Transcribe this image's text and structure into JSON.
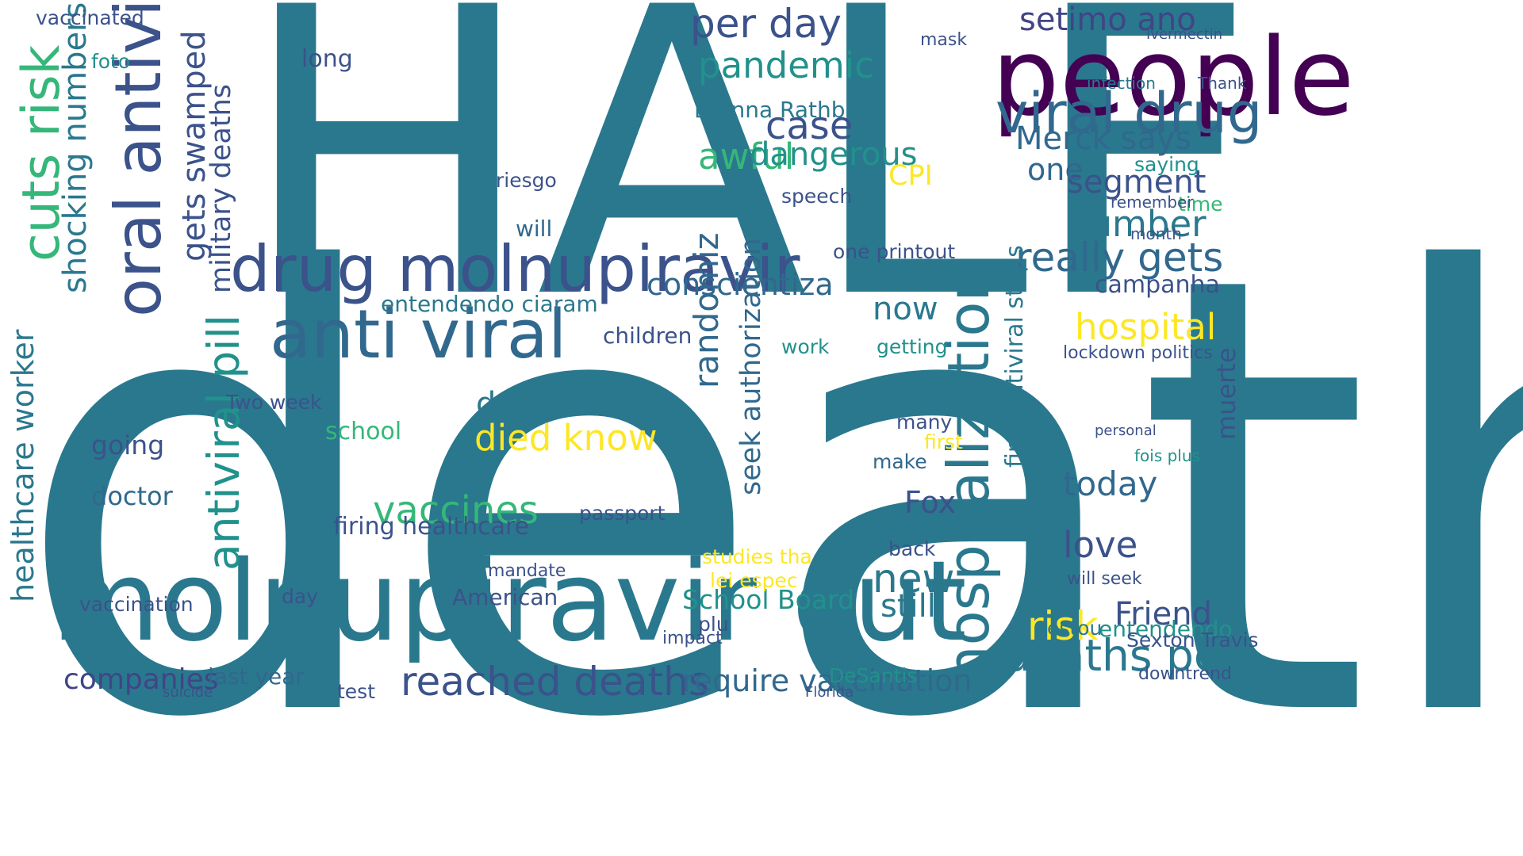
{
  "words": [
    {
      "text": "HALF",
      "color": "#2a788e",
      "vertical": false
    },
    {
      "text": "death",
      "color": "#2a788e",
      "vertical": false
    },
    {
      "text": "people",
      "color": "#440154",
      "vertical": false
    },
    {
      "text": "molnupiravir cut",
      "color": "#2a788e",
      "vertical": false
    },
    {
      "text": "drug molnupiravir",
      "color": "#3b528b",
      "vertical": false
    },
    {
      "text": "anti viral",
      "color": "#31688e",
      "vertical": false
    },
    {
      "text": "oral antivi",
      "color": "#3b528b",
      "vertical": true
    },
    {
      "text": "cuts risk",
      "color": "#35b779",
      "vertical": true
    },
    {
      "text": "hospitalization",
      "color": "#2a788e",
      "vertical": true
    },
    {
      "text": "antiviral pill",
      "color": "#21918c",
      "vertical": true
    },
    {
      "text": "viral drug",
      "color": "#31688e",
      "vertical": false
    },
    {
      "text": "deaths per",
      "color": "#2a788e",
      "vertical": false
    },
    {
      "text": "reached deaths",
      "color": "#3b528b",
      "vertical": false
    },
    {
      "text": "require vaccination",
      "color": "#31688e",
      "vertical": false
    },
    {
      "text": "companies",
      "color": "#414487",
      "vertical": false
    },
    {
      "text": "last year",
      "color": "#31688e",
      "vertical": false
    },
    {
      "text": "pandemic",
      "color": "#21918c",
      "vertical": false
    },
    {
      "text": "Merck says",
      "color": "#31688e",
      "vertical": false
    },
    {
      "text": "really gets",
      "color": "#31688e",
      "vertical": false
    },
    {
      "text": "segment",
      "color": "#3b528b",
      "vertical": false
    },
    {
      "text": "number",
      "color": "#2a788e",
      "vertical": false
    },
    {
      "text": "hospital",
      "color": "#fde725",
      "vertical": false
    },
    {
      "text": "risk",
      "color": "#fde725",
      "vertical": false
    },
    {
      "text": "Friend",
      "color": "#3b528b",
      "vertical": false
    },
    {
      "text": "vaccines",
      "color": "#35b779",
      "vertical": false
    },
    {
      "text": "died know",
      "color": "#fde725",
      "vertical": false
    },
    {
      "text": "conscientiza",
      "color": "#31688e",
      "vertical": false
    },
    {
      "text": "now",
      "color": "#2a788e",
      "vertical": false
    },
    {
      "text": "per day",
      "color": "#3b528b",
      "vertical": false
    },
    {
      "text": "setimo ano",
      "color": "#414487",
      "vertical": false
    },
    {
      "text": "case",
      "color": "#3b528b",
      "vertical": false
    },
    {
      "text": "awful",
      "color": "#35b779",
      "vertical": false
    },
    {
      "text": "dangerous",
      "color": "#21918c",
      "vertical": false
    },
    {
      "text": "one",
      "color": "#31688e",
      "vertical": false
    },
    {
      "text": "CPI",
      "color": "#fde725",
      "vertical": false
    },
    {
      "text": "campanha",
      "color": "#3b528b",
      "vertical": false
    },
    {
      "text": "today",
      "color": "#31688e",
      "vertical": false
    },
    {
      "text": "love",
      "color": "#3b528b",
      "vertical": false
    },
    {
      "text": "Fox",
      "color": "#3b528b",
      "vertical": false
    },
    {
      "text": "new",
      "color": "#2a788e",
      "vertical": false
    },
    {
      "text": "still",
      "color": "#2a788e",
      "vertical": false
    },
    {
      "text": "American",
      "color": "#3b528b",
      "vertical": false
    },
    {
      "text": "School Board",
      "color": "#21918c",
      "vertical": false
    },
    {
      "text": "firing healthcare",
      "color": "#3b528b",
      "vertical": false
    },
    {
      "text": "data",
      "color": "#2a788e",
      "vertical": false
    },
    {
      "text": "school",
      "color": "#35b779",
      "vertical": false
    },
    {
      "text": "going",
      "color": "#3b528b",
      "vertical": false
    },
    {
      "text": "doctor",
      "color": "#31688e",
      "vertical": false
    },
    {
      "text": "healthcare worker",
      "color": "#2a788e",
      "vertical": true
    },
    {
      "text": "gets swamped",
      "color": "#3b528b",
      "vertical": true
    },
    {
      "text": "military deaths",
      "color": "#3b528b",
      "vertical": true
    },
    {
      "text": "shocking numbers",
      "color": "#2a788e",
      "vertical": true
    },
    {
      "text": "randomiz",
      "color": "#31688e",
      "vertical": true
    },
    {
      "text": "seek authorization",
      "color": "#31688e",
      "vertical": true
    },
    {
      "text": "first antiviral stops",
      "color": "#2a788e",
      "vertical": true
    },
    {
      "text": "muerte",
      "color": "#3b528b",
      "vertical": true
    },
    {
      "text": "vaccination",
      "color": "#3b528b",
      "vertical": false
    },
    {
      "text": "entendendo ciaram",
      "color": "#2a788e",
      "vertical": false
    },
    {
      "text": "children",
      "color": "#3b528b",
      "vertical": false
    },
    {
      "text": "vaccinated",
      "color": "#3b528b",
      "vertical": false
    },
    {
      "text": "long",
      "color": "#3b528b",
      "vertical": false
    },
    {
      "text": "Dianna Rathburn",
      "color": "#2a788e",
      "vertical": false
    },
    {
      "text": "speech",
      "color": "#3b528b",
      "vertical": false
    },
    {
      "text": "one printout",
      "color": "#3b528b",
      "vertical": false
    },
    {
      "text": "getting",
      "color": "#21918c",
      "vertical": false
    },
    {
      "text": "work",
      "color": "#21918c",
      "vertical": false
    },
    {
      "text": "make",
      "color": "#31688e",
      "vertical": false
    },
    {
      "text": "many",
      "color": "#3b528b",
      "vertical": false
    },
    {
      "text": "first",
      "color": "#fde725",
      "vertical": false
    },
    {
      "text": "back",
      "color": "#3b528b",
      "vertical": false
    },
    {
      "text": "passport",
      "color": "#3b528b",
      "vertical": false
    },
    {
      "text": "mandate",
      "color": "#3b528b",
      "vertical": false
    },
    {
      "text": "day",
      "color": "#3b528b",
      "vertical": false
    },
    {
      "text": "Two week",
      "color": "#3b528b",
      "vertical": false
    },
    {
      "text": "estou",
      "color": "#2a788e",
      "vertical": false
    },
    {
      "text": "entendendo",
      "color": "#21918c",
      "vertical": false
    },
    {
      "text": "time",
      "color": "#35b779",
      "vertical": false
    },
    {
      "text": "month",
      "color": "#3b528b",
      "vertical": false
    },
    {
      "text": "remember",
      "color": "#3b528b",
      "vertical": false
    },
    {
      "text": "saying",
      "color": "#21918c",
      "vertical": false
    },
    {
      "text": "foto",
      "color": "#21918c",
      "vertical": false
    },
    {
      "text": "mask",
      "color": "#3b528b",
      "vertical": false
    },
    {
      "text": "Thank",
      "color": "#3b528b",
      "vertical": false
    },
    {
      "text": "Ivermectin",
      "color": "#3b528b",
      "vertical": false
    },
    {
      "text": "infection",
      "color": "#2a788e",
      "vertical": false
    },
    {
      "text": "riesgo",
      "color": "#3b528b",
      "vertical": false
    },
    {
      "text": "will",
      "color": "#31688e",
      "vertical": false
    },
    {
      "text": "lockdown politics",
      "color": "#3b528b",
      "vertical": false
    },
    {
      "text": "studies tha",
      "color": "#fde725",
      "vertical": false
    },
    {
      "text": "lei espec",
      "color": "#fde725",
      "vertical": false
    },
    {
      "text": "plu",
      "color": "#3b528b",
      "vertical": false
    },
    {
      "text": "impact",
      "color": "#3b528b",
      "vertical": false
    },
    {
      "text": "suicide",
      "color": "#3b528b",
      "vertical": false
    },
    {
      "text": "test",
      "color": "#3b528b",
      "vertical": false
    },
    {
      "text": "Florida",
      "color": "#3b528b",
      "vertical": false
    },
    {
      "text": "DeSantis",
      "color": "#21918c",
      "vertical": false
    },
    {
      "text": "downtrend",
      "color": "#3b528b",
      "vertical": false
    },
    {
      "text": "Sexton Travis",
      "color": "#3b528b",
      "vertical": false
    },
    {
      "text": "will seek",
      "color": "#3b528b",
      "vertical": false
    },
    {
      "text": "fois plus",
      "color": "#21918c",
      "vertical": false
    },
    {
      "text": "personal",
      "color": "#3b528b",
      "vertical": false
    }
  ]
}
